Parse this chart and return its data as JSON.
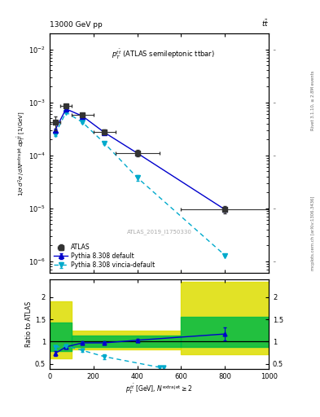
{
  "title_left": "13000 GeV pp",
  "title_right": "tt̅",
  "watermark": "ATLAS_2019_I1750330",
  "ylabel_main": "1/σ d²σ / d N^{extra jet} d p_T^{tbar{t}} [1/GeV]",
  "ylabel_ratio": "Ratio to ATLAS",
  "xlabel": "p_T^{tbar{t}} [GeV], N^{extra jet} ≥ 2",
  "xlim": [
    0,
    1000
  ],
  "ylim_main": [
    6e-07,
    0.02
  ],
  "ylim_ratio": [
    0.38,
    2.4
  ],
  "atlas_x": [
    25,
    75,
    150,
    250,
    400,
    800
  ],
  "atlas_y": [
    0.00042,
    0.00085,
    0.00058,
    0.00028,
    0.00011,
    9.5e-06
  ],
  "atlas_yerr_lo": [
    0.00012,
    6e-05,
    4e-05,
    3e-05,
    1.5e-05,
    1.5e-06
  ],
  "atlas_yerr_hi": [
    0.00012,
    6e-05,
    4e-05,
    3e-05,
    1.5e-05,
    1.5e-06
  ],
  "atlas_xerr_lo": [
    25,
    25,
    50,
    50,
    100,
    200
  ],
  "atlas_xerr_hi": [
    25,
    25,
    50,
    50,
    100,
    200
  ],
  "pythia_def_x": [
    25,
    75,
    150,
    250,
    400,
    800
  ],
  "pythia_def_y": [
    0.0003,
    0.00075,
    0.00055,
    0.00027,
    0.00011,
    9.5e-06
  ],
  "pythia_def_yerr": [
    2e-05,
    2e-05,
    1.5e-05,
    1e-05,
    5e-06,
    3e-07
  ],
  "pythia_vin_x": [
    25,
    75,
    150,
    250,
    400,
    800
  ],
  "pythia_vin_y": [
    0.00025,
    0.00065,
    0.00042,
    0.00017,
    3.8e-05,
    1.3e-06
  ],
  "pythia_vin_yerr": [
    1.5e-05,
    2e-05,
    1.5e-05,
    1e-05,
    5e-06,
    2e-08
  ],
  "ratio_def_x": [
    25,
    75,
    150,
    250,
    400,
    800
  ],
  "ratio_def_y": [
    0.73,
    0.88,
    0.97,
    0.97,
    1.03,
    1.17
  ],
  "ratio_def_yerr": [
    0.06,
    0.04,
    0.03,
    0.03,
    0.04,
    0.15
  ],
  "ratio_vin_x": [
    25,
    75,
    150,
    250,
    500,
    520
  ],
  "ratio_vin_y": [
    0.87,
    0.9,
    0.8,
    0.66,
    0.42,
    0.42
  ],
  "ratio_vin_yerr": [
    0.05,
    0.04,
    0.04,
    0.05,
    0.04,
    0.03
  ],
  "band1_xlo": 0,
  "band1_xhi": 100,
  "band1_ylo": 0.62,
  "band1_yhi": 1.9,
  "band2_xlo": 100,
  "band2_xhi": 600,
  "band2_ylo": 0.82,
  "band2_yhi": 1.25,
  "band3_xlo": 600,
  "band3_xhi": 1000,
  "band3_ylo": 0.72,
  "band3_yhi": 2.35,
  "green1_xlo": 0,
  "green1_xhi": 100,
  "green1_ylo": 0.78,
  "green1_yhi": 1.43,
  "green2_xlo": 100,
  "green2_xhi": 600,
  "green2_ylo": 0.88,
  "green2_yhi": 1.13,
  "green3_xlo": 600,
  "green3_xhi": 1000,
  "green3_ylo": 0.88,
  "green3_yhi": 1.55,
  "color_atlas": "#333333",
  "color_pythia_def": "#0000cc",
  "color_pythia_vin": "#00aacc",
  "color_yellow": "#dddd00",
  "color_green": "#00bb44",
  "bg_color": "#ffffff"
}
